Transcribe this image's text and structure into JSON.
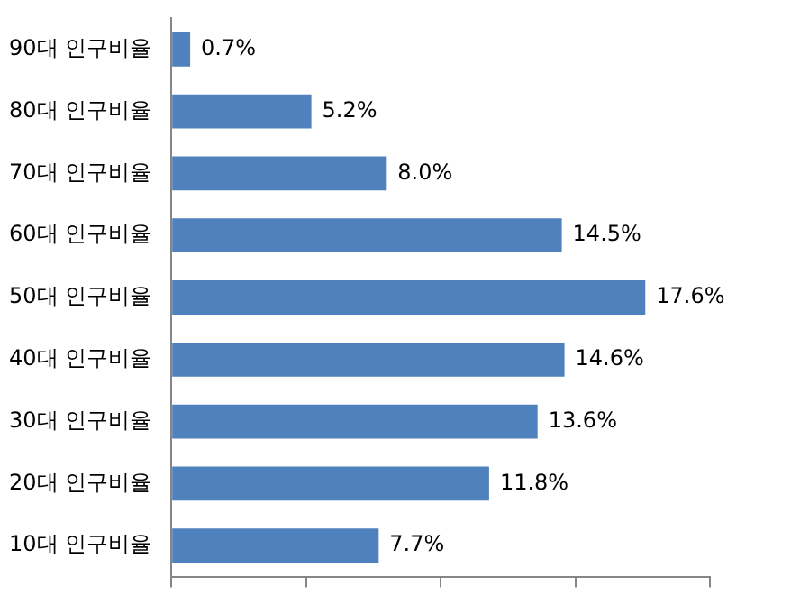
{
  "chart_data": {
    "type": "bar",
    "orientation": "horizontal",
    "categories": [
      "90대 인구비율",
      "80대 인구비율",
      "70대 인구비율",
      "60대 인구비율",
      "50대 인구비율",
      "40대 인구비율",
      "30대 인구비율",
      "20대 인구비율",
      "10대 인구비율"
    ],
    "values": [
      0.7,
      5.2,
      8.0,
      14.5,
      17.6,
      14.6,
      13.6,
      11.8,
      7.7
    ],
    "value_labels": [
      "0.7%",
      "5.2%",
      "8.0%",
      "14.5%",
      "17.6%",
      "14.6%",
      "13.6%",
      "11.8%",
      "7.7%"
    ],
    "color": "#4f81bd",
    "xlim": [
      0,
      20
    ],
    "xticks": [
      {
        "value": 0,
        "label": null
      },
      {
        "value": 5,
        "label": null
      },
      {
        "value": 10,
        "label": null
      },
      {
        "value": 15,
        "label": null
      },
      {
        "value": 20,
        "label": null
      }
    ],
    "tick_labels": "y",
    "grid": false,
    "legend": false
  }
}
